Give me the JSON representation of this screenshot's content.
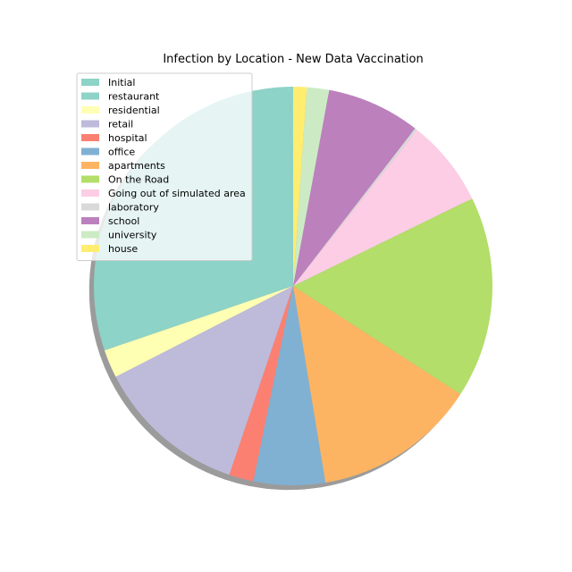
{
  "chart_data": {
    "type": "pie",
    "title": "Infection by Location - New Data Vaccination",
    "shadow": true,
    "legend_position": "top-left",
    "categories": [
      "Initial",
      "restaurant",
      "residential",
      "retail",
      "hospital",
      "office",
      "apartments",
      "On the Road",
      "Going out of simulated area",
      "laboratory",
      "school",
      "university",
      "house"
    ],
    "values": [
      0.3,
      30.0,
      2.3,
      12.3,
      2.0,
      5.8,
      13.3,
      16.4,
      7.1,
      0.2,
      7.6,
      1.8,
      1.1
    ],
    "colors": [
      "#8dd3c7",
      "#8dd3c7",
      "#ffffb3",
      "#bebada",
      "#fb8072",
      "#80b1d3",
      "#fdb462",
      "#b3de69",
      "#fccde5",
      "#d9d9d9",
      "#bc80bd",
      "#ccebc5",
      "#ffed6f"
    ]
  }
}
